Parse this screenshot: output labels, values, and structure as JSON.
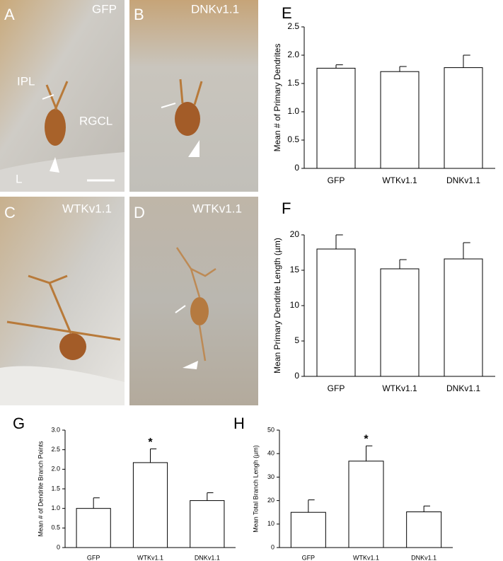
{
  "images": [
    {
      "letter": "A",
      "labels": [
        "GFP",
        "IPL",
        "RGCL",
        "L"
      ]
    },
    {
      "letter": "B",
      "labels": [
        "DNKv1.1"
      ]
    },
    {
      "letter": "C",
      "labels": [
        "WTKv1.1"
      ]
    },
    {
      "letter": "D",
      "labels": [
        "WTKv1.1"
      ]
    }
  ],
  "chart_data": [
    {
      "type": "bar",
      "panel": "E",
      "y_label": "Mean # of Primary Dendrites",
      "categories": [
        "GFP",
        "WTKv1.1",
        "DNKv1.1"
      ],
      "values": [
        1.77,
        1.71,
        1.78
      ],
      "errors": [
        0.06,
        0.09,
        0.22
      ],
      "color": "#ffffff",
      "ylim": [
        0,
        2.5
      ],
      "yticks": [
        0,
        0.5,
        {
          "value": 1,
          "label": "1.0"
        },
        1.5,
        {
          "value": 2,
          "label": "2.0"
        },
        2.5
      ]
    },
    {
      "type": "bar",
      "panel": "F",
      "y_label": "Mean Primary Dendrite Length (µm)",
      "categories": [
        "GFP",
        "WTKv1.1",
        "DNKv1.1"
      ],
      "values": [
        18.0,
        15.2,
        16.6
      ],
      "errors": [
        2.0,
        1.3,
        2.3
      ],
      "color": "#ffffff",
      "ylim": [
        0,
        20
      ],
      "yticks": [
        0,
        5,
        10,
        15,
        20
      ]
    },
    {
      "type": "bar",
      "panel": "G",
      "y_label": "Mean # of Dendrite Branch Points",
      "categories": [
        "GFP",
        "WTKv1.1",
        "DNKv1.1"
      ],
      "values": [
        1.0,
        2.17,
        1.2
      ],
      "errors": [
        0.27,
        0.35,
        0.2
      ],
      "color": "#ffffff",
      "ylim": [
        0,
        3
      ],
      "yticks": [
        0,
        0.5,
        {
          "value": 1,
          "label": "1.0"
        },
        1.5,
        {
          "value": 2,
          "label": "2.0"
        },
        2.5,
        {
          "value": 3,
          "label": "3.0"
        }
      ],
      "annotations": [
        {
          "text": "*",
          "category": "WTKv1.1"
        }
      ]
    },
    {
      "type": "bar",
      "panel": "H",
      "y_label": "Mean Total Branch Lengh (µm)",
      "categories": [
        "GFP",
        "WTKv1.1",
        "DNKv1.1"
      ],
      "values": [
        15.0,
        36.8,
        15.2
      ],
      "errors": [
        5.3,
        6.5,
        2.5
      ],
      "color": "#ffffff",
      "ylim": [
        0,
        50
      ],
      "yticks": [
        0,
        10,
        20,
        30,
        40,
        50
      ],
      "annotations": [
        {
          "text": "*",
          "category": "WTKv1.1"
        }
      ]
    }
  ]
}
